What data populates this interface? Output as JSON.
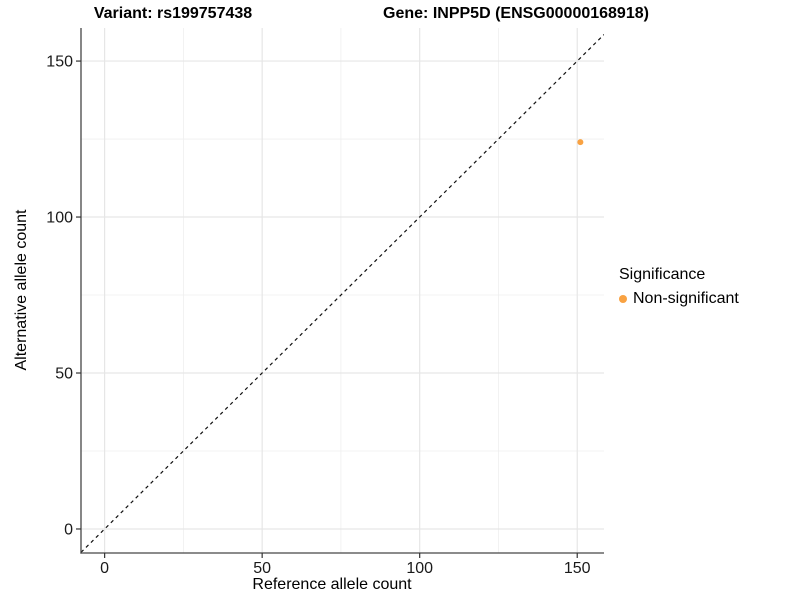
{
  "titles": {
    "left": "Variant: rs199757438",
    "right": "Gene: INPP5D (ENSG00000168918)"
  },
  "chart_data": {
    "type": "scatter",
    "xlabel": "Reference allele count",
    "ylabel": "Alternative allele count",
    "xlim": [
      -7.5,
      158.5
    ],
    "ylim": [
      -7.7,
      160.6
    ],
    "x_major_ticks": [
      0,
      50,
      100,
      150
    ],
    "y_major_ticks": [
      0,
      50,
      100,
      150
    ],
    "x_minor_gridlines": [
      25,
      75,
      125
    ],
    "y_minor_gridlines": [
      25,
      75,
      125
    ],
    "grid": true,
    "points": [
      {
        "x": 151,
        "y": 124,
        "color": "#F9A242",
        "radius": 3,
        "significance": "Non-significant"
      }
    ],
    "abline": {
      "slope": 1,
      "intercept": 0,
      "style": "dashed",
      "color": "#111111"
    },
    "legend": {
      "position": "right",
      "title": "Significance",
      "items": [
        {
          "label": "Non-significant",
          "color": "#F9A242"
        }
      ]
    },
    "style_colors": {
      "panel_background": "#ffffff",
      "grid_major": "#e6e6e6",
      "grid_minor": "#efefef",
      "axis_line": "#464646",
      "tick_mark": "#333333",
      "tick_label": "#1a1a1a"
    }
  }
}
